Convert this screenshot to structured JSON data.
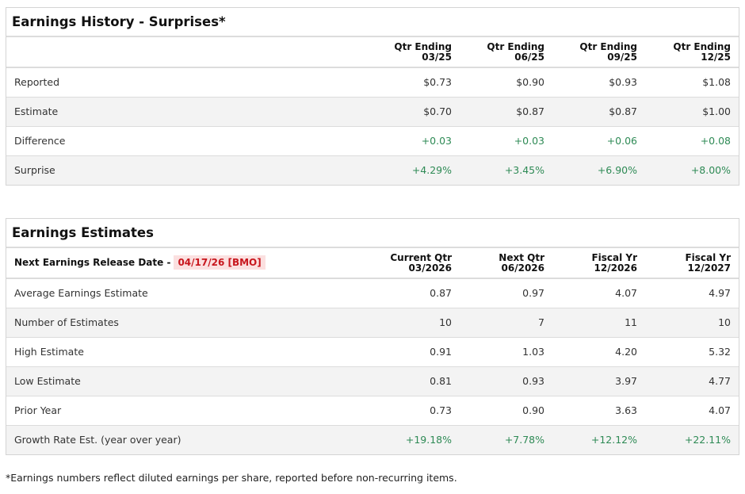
{
  "history": {
    "title": "Earnings History - Surprises*",
    "columns": [
      [
        "Qtr Ending",
        "03/25"
      ],
      [
        "Qtr Ending",
        "06/25"
      ],
      [
        "Qtr Ending",
        "09/25"
      ],
      [
        "Qtr Ending",
        "12/25"
      ]
    ],
    "rows": [
      {
        "label": "Reported",
        "values": [
          "$0.73",
          "$0.90",
          "$0.93",
          "$1.08"
        ]
      },
      {
        "label": "Estimate",
        "values": [
          "$0.70",
          "$0.87",
          "$0.87",
          "$1.00"
        ]
      },
      {
        "label": "Difference",
        "values": [
          "+0.03",
          "+0.03",
          "+0.06",
          "+0.08"
        ]
      },
      {
        "label": "Surprise",
        "values": [
          "+4.29%",
          "+3.45%",
          "+6.90%",
          "+8.00%"
        ]
      }
    ]
  },
  "estimates": {
    "title": "Earnings Estimates",
    "release_label": "Next Earnings Release Date -",
    "release_date": "04/17/26 [BMO]",
    "columns": [
      [
        "Current Qtr",
        "03/2026"
      ],
      [
        "Next Qtr",
        "06/2026"
      ],
      [
        "Fiscal Yr",
        "12/2026"
      ],
      [
        "Fiscal Yr",
        "12/2027"
      ]
    ],
    "rows": [
      {
        "label": "Average Earnings Estimate",
        "values": [
          "0.87",
          "0.97",
          "4.07",
          "4.97"
        ]
      },
      {
        "label": "Number of Estimates",
        "values": [
          "10",
          "7",
          "11",
          "10"
        ]
      },
      {
        "label": "High Estimate",
        "values": [
          "0.91",
          "1.03",
          "4.20",
          "5.32"
        ]
      },
      {
        "label": "Low Estimate",
        "values": [
          "0.81",
          "0.93",
          "3.97",
          "4.77"
        ]
      },
      {
        "label": "Prior Year",
        "values": [
          "0.73",
          "0.90",
          "3.63",
          "4.07"
        ]
      },
      {
        "label": "Growth Rate Est. (year over year)",
        "values": [
          "+19.18%",
          "+7.78%",
          "+12.12%",
          "+22.11%"
        ]
      }
    ]
  },
  "footnote": "*Earnings numbers reflect diluted earnings per share, reported before non-recurring items.",
  "colors": {
    "positive": "#2e8a55",
    "release_date": "#c8161d",
    "release_bg": "#fbe0e0"
  }
}
